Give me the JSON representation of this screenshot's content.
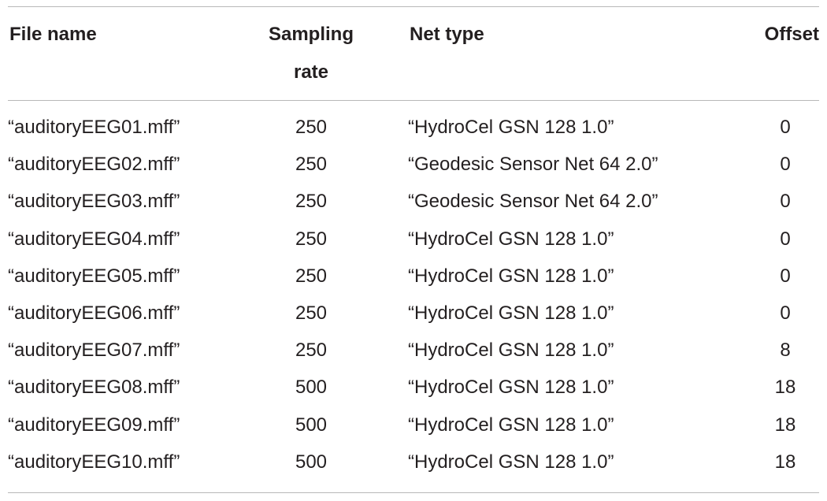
{
  "table": {
    "headers": {
      "file_name": "File name",
      "sampling_rate_line1": "Sampling",
      "sampling_rate_line2": "rate",
      "net_type": "Net type",
      "offset": "Offset"
    },
    "rows": [
      {
        "file": "“auditoryEEG01.mff”",
        "rate": "250",
        "net": "“HydroCel GSN 128 1.0”",
        "offset": "0"
      },
      {
        "file": "“auditoryEEG02.mff”",
        "rate": "250",
        "net": "“Geodesic Sensor Net 64 2.0”",
        "offset": "0"
      },
      {
        "file": "“auditoryEEG03.mff”",
        "rate": "250",
        "net": "“Geodesic Sensor Net 64 2.0”",
        "offset": "0"
      },
      {
        "file": "“auditoryEEG04.mff”",
        "rate": "250",
        "net": "“HydroCel GSN 128 1.0”",
        "offset": "0"
      },
      {
        "file": "“auditoryEEG05.mff”",
        "rate": "250",
        "net": "“HydroCel GSN 128 1.0”",
        "offset": "0"
      },
      {
        "file": "“auditoryEEG06.mff”",
        "rate": "250",
        "net": "“HydroCel GSN 128 1.0”",
        "offset": "0"
      },
      {
        "file": "“auditoryEEG07.mff”",
        "rate": "250",
        "net": "“HydroCel GSN 128 1.0”",
        "offset": "8"
      },
      {
        "file": "“auditoryEEG08.mff”",
        "rate": "500",
        "net": "“HydroCel GSN 128 1.0”",
        "offset": "18"
      },
      {
        "file": "“auditoryEEG09.mff”",
        "rate": "500",
        "net": "“HydroCel GSN 128 1.0”",
        "offset": "18"
      },
      {
        "file": "“auditoryEEG10.mff”",
        "rate": "500",
        "net": "“HydroCel GSN 128 1.0”",
        "offset": "18"
      }
    ]
  }
}
